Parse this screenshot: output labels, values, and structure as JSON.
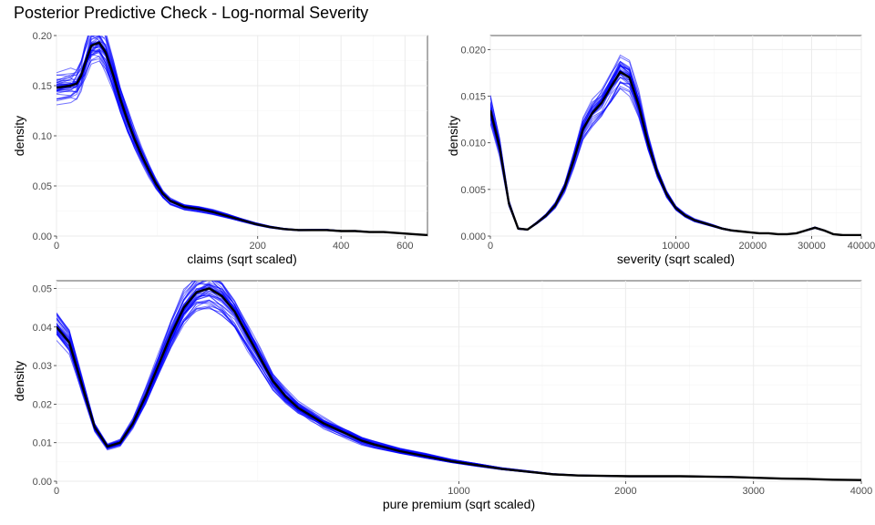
{
  "title": "Posterior Predictive Check - Log-normal Severity",
  "colors": {
    "replicates": "#0000ff",
    "observed": "#000000"
  },
  "chart_data": [
    {
      "type": "line",
      "ylabel": "density",
      "xlabel": "claims (sqrt scaled)",
      "x_scale": "sqrt",
      "xlim": [
        0,
        680
      ],
      "ylim": [
        0,
        0.2
      ],
      "x_ticks": [
        0,
        200,
        400,
        600
      ],
      "x_tick_labels": [
        "0",
        "200",
        "400",
        "600"
      ],
      "y_ticks": [
        0,
        0.05,
        0.1,
        0.15,
        0.2
      ],
      "y_tick_labels": [
        "0.00",
        "0.05",
        "0.10",
        "0.15",
        "0.20"
      ],
      "grid": true,
      "replicate_count": 40,
      "replicate_color": "#0000ff",
      "observed": {
        "x": [
          0,
          1,
          2,
          3,
          4,
          6,
          9,
          12,
          16,
          20,
          25,
          30,
          36,
          42,
          49,
          56,
          64,
          81,
          100,
          121,
          144,
          169,
          196,
          225,
          256,
          289,
          324,
          361,
          400,
          441,
          484,
          529,
          576,
          625,
          680
        ],
        "y": [
          0.148,
          0.15,
          0.152,
          0.16,
          0.172,
          0.19,
          0.193,
          0.183,
          0.16,
          0.137,
          0.115,
          0.097,
          0.08,
          0.066,
          0.052,
          0.042,
          0.035,
          0.029,
          0.027,
          0.024,
          0.02,
          0.016,
          0.012,
          0.009,
          0.007,
          0.006,
          0.006,
          0.006,
          0.005,
          0.005,
          0.004,
          0.004,
          0.003,
          0.002,
          0.001
        ]
      }
    },
    {
      "type": "line",
      "ylabel": "density",
      "xlabel": "severity (sqrt scaled)",
      "x_scale": "sqrt",
      "xlim": [
        0,
        40000
      ],
      "ylim": [
        0,
        0.0215
      ],
      "x_ticks": [
        0,
        10000,
        20000,
        30000,
        40000
      ],
      "x_tick_labels": [
        "0",
        "10000",
        "20000",
        "30000",
        "40000"
      ],
      "y_ticks": [
        0,
        0.005,
        0.01,
        0.015,
        0.02
      ],
      "y_tick_labels": [
        "0.000",
        "0.005",
        "0.010",
        "0.015",
        "0.020"
      ],
      "grid": true,
      "replicate_count": 40,
      "replicate_color": "#0000ff",
      "observed": {
        "x": [
          0,
          25,
          100,
          225,
          400,
          625,
          900,
          1225,
          1600,
          2025,
          2500,
          3025,
          3600,
          4225,
          4900,
          5625,
          6400,
          7225,
          8100,
          9025,
          10000,
          11025,
          12100,
          13225,
          14400,
          15625,
          16900,
          18225,
          19600,
          21025,
          22500,
          24025,
          25600,
          27225,
          28900,
          30625,
          32400,
          34225,
          36100,
          38025,
          40000
        ],
        "y": [
          0.0135,
          0.0095,
          0.0035,
          0.0008,
          0.0007,
          0.0014,
          0.0022,
          0.0033,
          0.0052,
          0.0082,
          0.0115,
          0.0132,
          0.0143,
          0.016,
          0.0176,
          0.017,
          0.014,
          0.01,
          0.0068,
          0.0045,
          0.003,
          0.0022,
          0.0017,
          0.0014,
          0.0011,
          0.0008,
          0.0006,
          0.0005,
          0.0004,
          0.0003,
          0.0003,
          0.0002,
          0.0002,
          0.0003,
          0.0006,
          0.0009,
          0.0006,
          0.0002,
          0.0001,
          0.0001,
          0.0001
        ]
      }
    },
    {
      "type": "line",
      "ylabel": "density",
      "xlabel": "pure premium (sqrt scaled)",
      "x_scale": "sqrt",
      "xlim": [
        0,
        4000
      ],
      "ylim": [
        0,
        0.052
      ],
      "x_ticks": [
        0,
        1000,
        2000,
        3000,
        4000
      ],
      "x_tick_labels": [
        "0",
        "1000",
        "2000",
        "3000",
        "4000"
      ],
      "y_ticks": [
        0,
        0.01,
        0.02,
        0.03,
        0.04,
        0.05
      ],
      "y_tick_labels": [
        "0.00",
        "0.01",
        "0.02",
        "0.03",
        "0.04",
        "0.05"
      ],
      "grid": true,
      "replicate_count": 40,
      "replicate_color": "#0000ff",
      "observed": {
        "x": [
          0,
          1,
          4,
          9,
          16,
          25,
          36,
          49,
          64,
          81,
          100,
          121,
          144,
          169,
          196,
          225,
          256,
          289,
          324,
          361,
          400,
          441,
          484,
          529,
          576,
          625,
          729,
          841,
          961,
          1089,
          1225,
          1369,
          1521,
          1681,
          1849,
          2025,
          2209,
          2401,
          2601,
          2809,
          3025,
          3249,
          3481,
          3721,
          4000
        ],
        "y": [
          0.04,
          0.036,
          0.025,
          0.014,
          0.009,
          0.01,
          0.015,
          0.022,
          0.03,
          0.038,
          0.045,
          0.049,
          0.05,
          0.048,
          0.044,
          0.038,
          0.032,
          0.026,
          0.022,
          0.019,
          0.017,
          0.015,
          0.0135,
          0.012,
          0.0105,
          0.0095,
          0.0078,
          0.0065,
          0.0052,
          0.0042,
          0.0032,
          0.0025,
          0.0018,
          0.0015,
          0.0014,
          0.0013,
          0.0013,
          0.0013,
          0.0012,
          0.0011,
          0.0009,
          0.0007,
          0.0006,
          0.0004,
          0.0003
        ]
      }
    }
  ]
}
